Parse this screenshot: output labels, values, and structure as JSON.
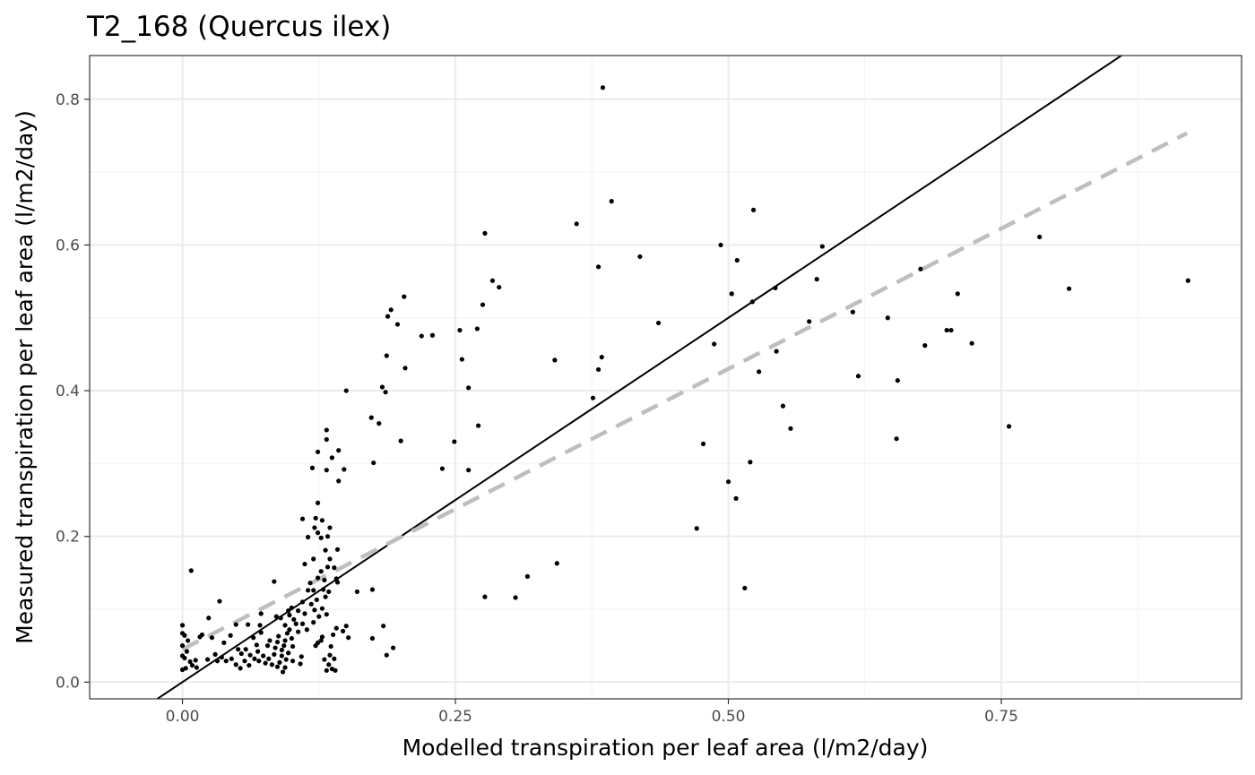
{
  "colors": {
    "background": "#ffffff",
    "panel_border": "#333333",
    "grid_major": "#ebebeb",
    "grid_minor": "#f2f2f2",
    "points": "#000000",
    "identity_line": "#000000",
    "fit_line": "#bebebe",
    "tick_text": "#4d4d4d"
  },
  "chart_data": {
    "type": "scatter",
    "title": "T2_168 (Quercus ilex)",
    "xlabel": "Modelled transpiration per leaf area (l/m2/day)",
    "ylabel": "Measured transpiration per leaf area (l/m2/day)",
    "xlim": [
      -0.085,
      0.97
    ],
    "ylim": [
      -0.023,
      0.86
    ],
    "x_ticks": [
      0.0,
      0.25,
      0.5,
      0.75
    ],
    "x_tick_labels": [
      "0.00",
      "0.25",
      "0.50",
      "0.75"
    ],
    "y_ticks": [
      0.0,
      0.2,
      0.4,
      0.6,
      0.8
    ],
    "y_tick_labels": [
      "0.0",
      "0.2",
      "0.4",
      "0.6",
      "0.8"
    ],
    "x_minor": [
      0.125,
      0.375,
      0.625,
      0.875
    ],
    "y_minor": [
      0.1,
      0.3,
      0.5,
      0.7
    ],
    "reference_lines": [
      {
        "name": "1:1 line",
        "slope": 1.0,
        "intercept": 0.0,
        "style": "solid"
      },
      {
        "name": "linear fit",
        "slope": 0.77,
        "intercept": 0.045,
        "x_range": [
          0.0,
          0.92
        ],
        "style": "dashed"
      }
    ],
    "points": [
      [
        0.385,
        0.816
      ],
      [
        0.393,
        0.66
      ],
      [
        0.361,
        0.629
      ],
      [
        0.277,
        0.616
      ],
      [
        0.523,
        0.648
      ],
      [
        0.493,
        0.6
      ],
      [
        0.586,
        0.598
      ],
      [
        0.419,
        0.584
      ],
      [
        0.508,
        0.579
      ],
      [
        0.381,
        0.57
      ],
      [
        0.284,
        0.551
      ],
      [
        0.29,
        0.542
      ],
      [
        0.543,
        0.541
      ],
      [
        0.581,
        0.553
      ],
      [
        0.503,
        0.533
      ],
      [
        0.522,
        0.522
      ],
      [
        0.676,
        0.567
      ],
      [
        0.785,
        0.611
      ],
      [
        0.812,
        0.54
      ],
      [
        0.921,
        0.551
      ],
      [
        0.71,
        0.533
      ],
      [
        0.614,
        0.508
      ],
      [
        0.646,
        0.5
      ],
      [
        0.574,
        0.495
      ],
      [
        0.436,
        0.493
      ],
      [
        0.7,
        0.483
      ],
      [
        0.704,
        0.483
      ],
      [
        0.723,
        0.465
      ],
      [
        0.68,
        0.462
      ],
      [
        0.487,
        0.464
      ],
      [
        0.544,
        0.454
      ],
      [
        0.528,
        0.426
      ],
      [
        0.619,
        0.42
      ],
      [
        0.655,
        0.414
      ],
      [
        0.384,
        0.446
      ],
      [
        0.381,
        0.429
      ],
      [
        0.341,
        0.442
      ],
      [
        0.376,
        0.39
      ],
      [
        0.55,
        0.379
      ],
      [
        0.557,
        0.348
      ],
      [
        0.757,
        0.351
      ],
      [
        0.654,
        0.334
      ],
      [
        0.477,
        0.327
      ],
      [
        0.52,
        0.302
      ],
      [
        0.5,
        0.275
      ],
      [
        0.507,
        0.252
      ],
      [
        0.471,
        0.211
      ],
      [
        0.515,
        0.129
      ],
      [
        0.203,
        0.529
      ],
      [
        0.191,
        0.511
      ],
      [
        0.188,
        0.502
      ],
      [
        0.197,
        0.491
      ],
      [
        0.187,
        0.448
      ],
      [
        0.219,
        0.475
      ],
      [
        0.229,
        0.476
      ],
      [
        0.254,
        0.483
      ],
      [
        0.275,
        0.518
      ],
      [
        0.27,
        0.485
      ],
      [
        0.256,
        0.443
      ],
      [
        0.204,
        0.431
      ],
      [
        0.262,
        0.404
      ],
      [
        0.183,
        0.405
      ],
      [
        0.186,
        0.398
      ],
      [
        0.15,
        0.4
      ],
      [
        0.173,
        0.363
      ],
      [
        0.18,
        0.355
      ],
      [
        0.271,
        0.352
      ],
      [
        0.249,
        0.33
      ],
      [
        0.2,
        0.331
      ],
      [
        0.175,
        0.301
      ],
      [
        0.238,
        0.293
      ],
      [
        0.262,
        0.291
      ],
      [
        0.343,
        0.163
      ],
      [
        0.316,
        0.145
      ],
      [
        0.277,
        0.117
      ],
      [
        0.305,
        0.116
      ],
      [
        0.132,
        0.346
      ],
      [
        0.132,
        0.333
      ],
      [
        0.143,
        0.318
      ],
      [
        0.124,
        0.316
      ],
      [
        0.137,
        0.308
      ],
      [
        0.119,
        0.294
      ],
      [
        0.132,
        0.291
      ],
      [
        0.148,
        0.292
      ],
      [
        0.143,
        0.276
      ],
      [
        0.124,
        0.246
      ],
      [
        0.11,
        0.224
      ],
      [
        0.122,
        0.225
      ],
      [
        0.128,
        0.222
      ],
      [
        0.121,
        0.212
      ],
      [
        0.135,
        0.212
      ],
      [
        0.127,
        0.198
      ],
      [
        0.115,
        0.199
      ],
      [
        0.133,
        0.2
      ],
      [
        0.124,
        0.205
      ],
      [
        0.142,
        0.182
      ],
      [
        0.131,
        0.181
      ],
      [
        0.135,
        0.169
      ],
      [
        0.12,
        0.169
      ],
      [
        0.112,
        0.162
      ],
      [
        0.133,
        0.158
      ],
      [
        0.139,
        0.157
      ],
      [
        0.127,
        0.152
      ],
      [
        0.124,
        0.143
      ],
      [
        0.141,
        0.142
      ],
      [
        0.13,
        0.14
      ],
      [
        0.117,
        0.136
      ],
      [
        0.142,
        0.137
      ],
      [
        0.129,
        0.127
      ],
      [
        0.115,
        0.126
      ],
      [
        0.12,
        0.126
      ],
      [
        0.134,
        0.124
      ],
      [
        0.131,
        0.117
      ],
      [
        0.123,
        0.113
      ],
      [
        0.11,
        0.11
      ],
      [
        0.118,
        0.107
      ],
      [
        0.128,
        0.101
      ],
      [
        0.121,
        0.099
      ],
      [
        0.106,
        0.098
      ],
      [
        0.112,
        0.094
      ],
      [
        0.125,
        0.09
      ],
      [
        0.132,
        0.093
      ],
      [
        0.1,
        0.102
      ],
      [
        0.097,
        0.098
      ],
      [
        0.098,
        0.092
      ],
      [
        0.102,
        0.086
      ],
      [
        0.11,
        0.08
      ],
      [
        0.114,
        0.072
      ],
      [
        0.12,
        0.082
      ],
      [
        0.104,
        0.08
      ],
      [
        0.09,
        0.088
      ],
      [
        0.094,
        0.078
      ],
      [
        0.098,
        0.072
      ],
      [
        0.106,
        0.069
      ],
      [
        0.096,
        0.067
      ],
      [
        0.088,
        0.063
      ],
      [
        0.1,
        0.06
      ],
      [
        0.094,
        0.057
      ],
      [
        0.087,
        0.055
      ],
      [
        0.093,
        0.05
      ],
      [
        0.101,
        0.049
      ],
      [
        0.085,
        0.047
      ],
      [
        0.091,
        0.044
      ],
      [
        0.097,
        0.04
      ],
      [
        0.084,
        0.038
      ],
      [
        0.091,
        0.036
      ],
      [
        0.095,
        0.031
      ],
      [
        0.101,
        0.029
      ],
      [
        0.089,
        0.027
      ],
      [
        0.094,
        0.02
      ],
      [
        0.108,
        0.025
      ],
      [
        0.109,
        0.035
      ],
      [
        0.122,
        0.05
      ],
      [
        0.127,
        0.057
      ],
      [
        0.128,
        0.062
      ],
      [
        0.124,
        0.054
      ],
      [
        0.138,
        0.065
      ],
      [
        0.141,
        0.074
      ],
      [
        0.147,
        0.07
      ],
      [
        0.15,
        0.077
      ],
      [
        0.152,
        0.061
      ],
      [
        0.16,
        0.124
      ],
      [
        0.174,
        0.127
      ],
      [
        0.174,
        0.06
      ],
      [
        0.184,
        0.077
      ],
      [
        0.187,
        0.037
      ],
      [
        0.193,
        0.047
      ],
      [
        0.13,
        0.031
      ],
      [
        0.135,
        0.037
      ],
      [
        0.134,
        0.024
      ],
      [
        0.137,
        0.018
      ],
      [
        0.14,
        0.016
      ],
      [
        0.132,
        0.016
      ],
      [
        0.139,
        0.032
      ],
      [
        0.136,
        0.049
      ],
      [
        0.008,
        0.153
      ],
      [
        0.034,
        0.111
      ],
      [
        0.024,
        0.088
      ],
      [
        0.049,
        0.079
      ],
      [
        0.018,
        0.065
      ],
      [
        0.027,
        0.061
      ],
      [
        0.016,
        0.062
      ],
      [
        0.06,
        0.079
      ],
      [
        0.071,
        0.078
      ],
      [
        0.072,
        0.068
      ],
      [
        0.065,
        0.061
      ],
      [
        0.08,
        0.057
      ],
      [
        0.068,
        0.051
      ],
      [
        0.078,
        0.05
      ],
      [
        0.058,
        0.045
      ],
      [
        0.054,
        0.039
      ],
      [
        0.062,
        0.037
      ],
      [
        0.066,
        0.032
      ],
      [
        0.057,
        0.029
      ],
      [
        0.061,
        0.023
      ],
      [
        0.053,
        0.019
      ],
      [
        0.049,
        0.024
      ],
      [
        0.045,
        0.032
      ],
      [
        0.04,
        0.029
      ],
      [
        0.036,
        0.034
      ],
      [
        0.032,
        0.029
      ],
      [
        0.03,
        0.038
      ],
      [
        0.023,
        0.031
      ],
      [
        0.012,
        0.03
      ],
      [
        0.007,
        0.028
      ],
      [
        0.009,
        0.023
      ],
      [
        0.013,
        0.02
      ],
      [
        0.003,
        0.019
      ],
      [
        0.0,
        0.017
      ],
      [
        0.002,
        0.033
      ],
      [
        0.0,
        0.036
      ],
      [
        0.004,
        0.042
      ],
      [
        0.0,
        0.05
      ],
      [
        0.005,
        0.057
      ],
      [
        0.002,
        0.064
      ],
      [
        0.0,
        0.067
      ],
      [
        0.0,
        0.078
      ],
      [
        0.044,
        0.064
      ],
      [
        0.038,
        0.054
      ],
      [
        0.051,
        0.045
      ],
      [
        0.069,
        0.042
      ],
      [
        0.074,
        0.036
      ],
      [
        0.07,
        0.029
      ],
      [
        0.076,
        0.026
      ],
      [
        0.082,
        0.024
      ],
      [
        0.087,
        0.021
      ],
      [
        0.079,
        0.032
      ],
      [
        0.084,
        0.138
      ],
      [
        0.086,
        0.09
      ],
      [
        0.072,
        0.094
      ],
      [
        0.092,
        0.014
      ]
    ]
  }
}
